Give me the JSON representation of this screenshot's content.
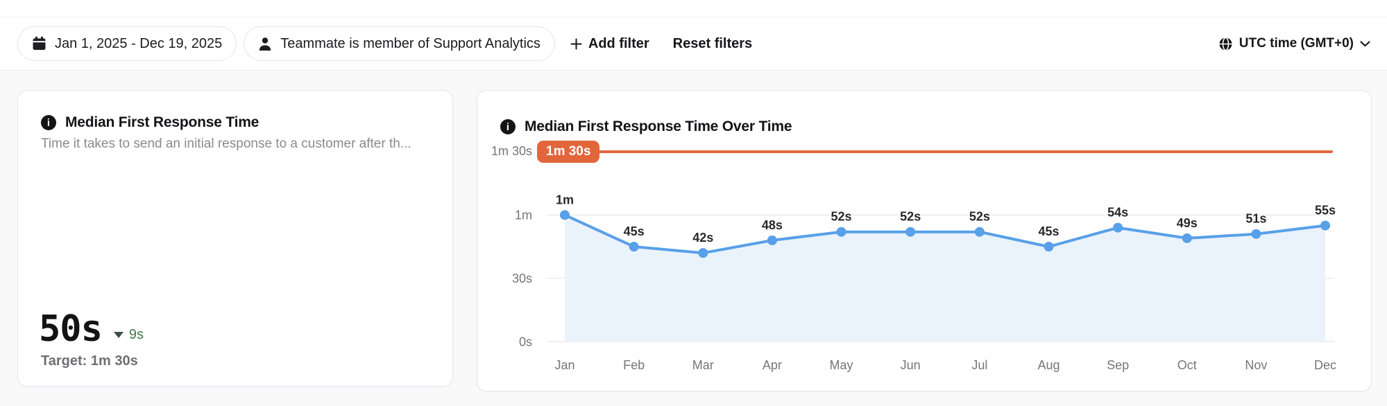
{
  "filters_bar": {
    "date_range": "Jan 1, 2025 - Dec 19, 2025",
    "teammate_filter": "Teammate is member of Support Analytics",
    "add_filter_label": "Add filter",
    "reset_filters_label": "Reset filters",
    "timezone_label": "UTC time (GMT+0)"
  },
  "metric_card": {
    "title": "Median First Response Time",
    "description": "Time it takes to send an initial response to a customer after th...",
    "value": "50s",
    "delta_value": "9s",
    "delta_direction": "down",
    "target_label": "Target: 1m 30s"
  },
  "chart_card": {
    "title": "Median First Response Time Over Time",
    "target_axis_label": "1m 30s",
    "target_badge_label": "1m 30s"
  },
  "chart_data": {
    "type": "line",
    "title": "Median First Response Time Over Time",
    "categories": [
      "Jan",
      "Feb",
      "Mar",
      "Apr",
      "May",
      "Jun",
      "Jul",
      "Aug",
      "Sep",
      "Oct",
      "Nov",
      "Dec"
    ],
    "values_seconds": [
      60,
      45,
      42,
      48,
      52,
      52,
      52,
      45,
      54,
      49,
      51,
      55
    ],
    "point_labels": [
      "1m",
      "45s",
      "42s",
      "48s",
      "52s",
      "52s",
      "52s",
      "45s",
      "54s",
      "49s",
      "51s",
      "55s"
    ],
    "target_seconds": 90,
    "target_label": "1m 30s",
    "ylim_seconds": [
      0,
      90
    ],
    "yticks": [
      {
        "value": 0,
        "label": "0s"
      },
      {
        "value": 30,
        "label": "30s"
      },
      {
        "value": 60,
        "label": "1m"
      },
      {
        "value": 90,
        "label": "1m 30s"
      }
    ],
    "xlabel": "",
    "ylabel": "",
    "grid": true,
    "legend": "none",
    "area_fill": true,
    "line_color": "#58A0E8",
    "point_color": "#58A0E8",
    "area_color": "#EAF2FC",
    "target_color": "#E2663C",
    "grid_color": "#ECECEE",
    "tick_label_color": "#75757A",
    "point_label_color": "#28282C"
  },
  "colors": {
    "accent_orange": "#E2663C",
    "line_blue": "#58A0E8",
    "delta_green": "#41794B",
    "card_border": "#E5E6EA",
    "page_background": "#F9F9FA"
  }
}
